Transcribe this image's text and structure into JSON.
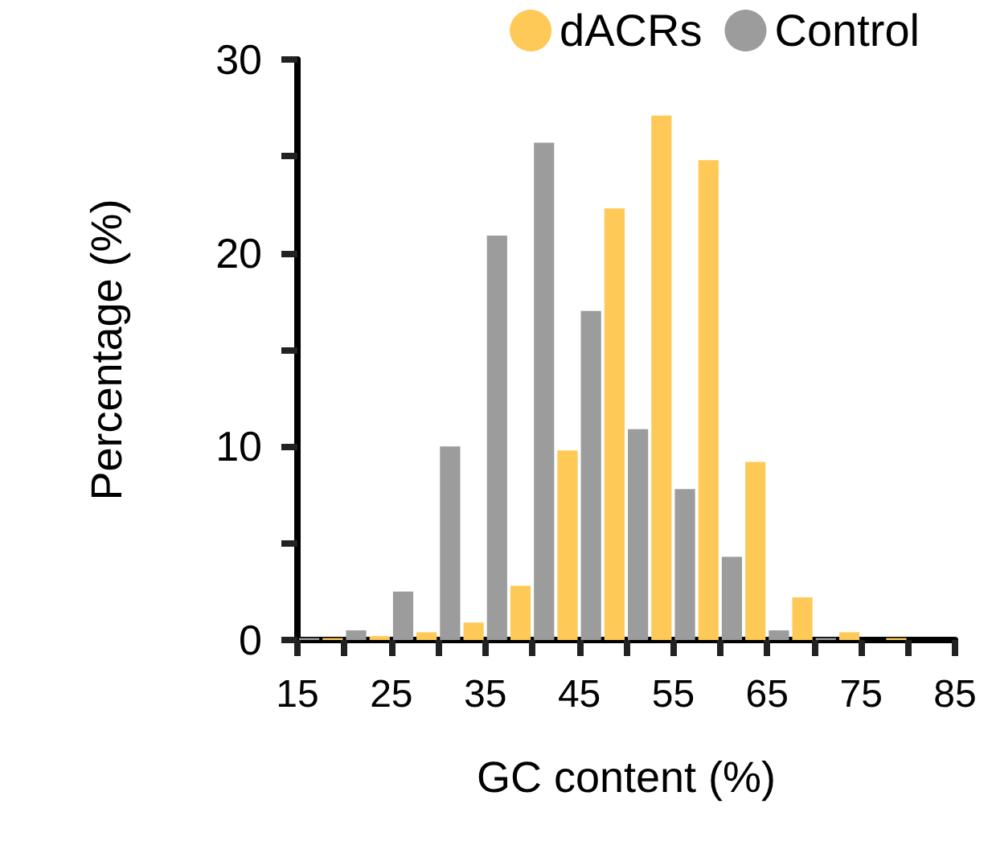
{
  "chart_data": {
    "type": "histogram",
    "xlabel": "GC content (%)",
    "ylabel": "Percentage (%)",
    "bins": [
      15,
      20,
      25,
      30,
      35,
      40,
      45,
      50,
      55,
      60,
      65,
      70,
      75,
      80,
      85
    ],
    "series": [
      {
        "name": "dACRs",
        "color": "#fec956",
        "values": [
          0.1,
          0.2,
          0.4,
          0.9,
          2.8,
          9.8,
          22.3,
          27.1,
          24.8,
          9.2,
          2.2,
          0.4,
          0.1,
          0
        ]
      },
      {
        "name": "Control",
        "color": "#9c9c9c",
        "values": [
          0.1,
          0.5,
          2.5,
          10,
          20.9,
          25.7,
          17,
          10.9,
          7.8,
          4.3,
          0.5,
          0.1,
          0,
          0
        ]
      }
    ],
    "xlim": [
      15,
      85
    ],
    "xticks": [
      15,
      {
        "value": 20,
        "label": null
      },
      25,
      {
        "value": 30,
        "label": null
      },
      35,
      {
        "value": 40,
        "label": null
      },
      45,
      {
        "value": 50,
        "label": null
      },
      55,
      {
        "value": 60,
        "label": null
      },
      65,
      {
        "value": 70,
        "label": null
      },
      75,
      {
        "value": 80,
        "label": null
      },
      85
    ],
    "ylim": [
      0,
      30
    ],
    "yticks": [
      0,
      {
        "value": 5,
        "label": null
      },
      10,
      {
        "value": 15,
        "label": null
      },
      20,
      {
        "value": 25,
        "label": null
      },
      30
    ],
    "grid": false,
    "legend": "top right"
  }
}
